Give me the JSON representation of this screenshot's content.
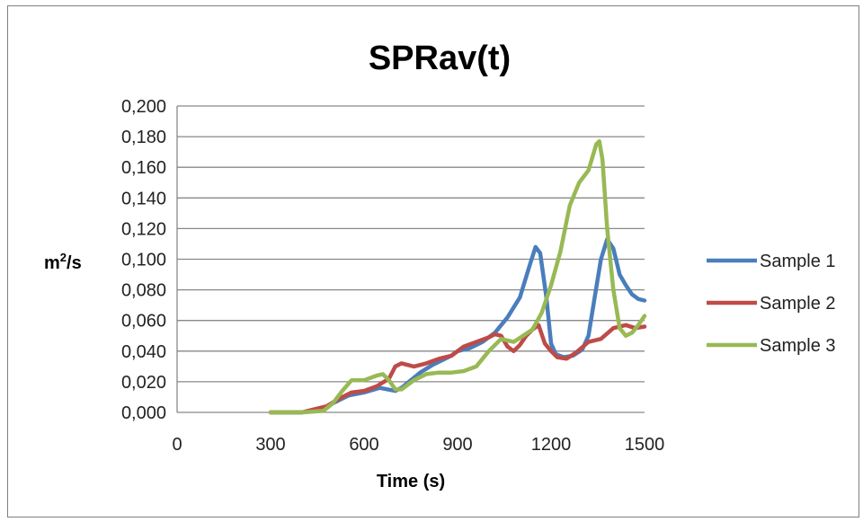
{
  "chart_data": {
    "type": "line",
    "title": "SPRav(t)",
    "xlabel": "Time (s)",
    "ylabel_base": "m",
    "ylabel_sup": "2",
    "ylabel_rest": "/s",
    "xlim": [
      0,
      1500
    ],
    "ylim": [
      0,
      0.2
    ],
    "x_ticks": [
      0,
      300,
      600,
      900,
      1200,
      1500
    ],
    "x_tick_labels": [
      "0",
      "300",
      "600",
      "900",
      "1200",
      "1500"
    ],
    "y_ticks": [
      0,
      0.02,
      0.04,
      0.06,
      0.08,
      0.1,
      0.12,
      0.14,
      0.16,
      0.18,
      0.2
    ],
    "y_tick_labels": [
      "0,000",
      "0,020",
      "0,040",
      "0,060",
      "0,080",
      "0,100",
      "0,120",
      "0,140",
      "0,160",
      "0,180",
      "0,200"
    ],
    "grid": "horizontal",
    "legend_position": "right",
    "series": [
      {
        "name": "Sample 1",
        "color": "#4a7ebb",
        "points": [
          [
            300,
            0
          ],
          [
            400,
            0
          ],
          [
            460,
            0.001
          ],
          [
            500,
            0.006
          ],
          [
            550,
            0.011
          ],
          [
            600,
            0.013
          ],
          [
            650,
            0.016
          ],
          [
            700,
            0.014
          ],
          [
            720,
            0.016
          ],
          [
            780,
            0.026
          ],
          [
            820,
            0.031
          ],
          [
            850,
            0.034
          ],
          [
            880,
            0.037
          ],
          [
            900,
            0.04
          ],
          [
            940,
            0.042
          ],
          [
            980,
            0.046
          ],
          [
            1020,
            0.052
          ],
          [
            1060,
            0.062
          ],
          [
            1100,
            0.075
          ],
          [
            1130,
            0.095
          ],
          [
            1150,
            0.108
          ],
          [
            1165,
            0.104
          ],
          [
            1185,
            0.075
          ],
          [
            1200,
            0.045
          ],
          [
            1215,
            0.038
          ],
          [
            1240,
            0.036
          ],
          [
            1270,
            0.037
          ],
          [
            1300,
            0.041
          ],
          [
            1320,
            0.05
          ],
          [
            1340,
            0.075
          ],
          [
            1360,
            0.1
          ],
          [
            1380,
            0.113
          ],
          [
            1400,
            0.107
          ],
          [
            1420,
            0.09
          ],
          [
            1440,
            0.083
          ],
          [
            1460,
            0.077
          ],
          [
            1480,
            0.074
          ],
          [
            1500,
            0.073
          ]
        ]
      },
      {
        "name": "Sample 2",
        "color": "#be4b48",
        "points": [
          [
            300,
            0
          ],
          [
            400,
            0
          ],
          [
            440,
            0.002
          ],
          [
            480,
            0.004
          ],
          [
            520,
            0.009
          ],
          [
            560,
            0.013
          ],
          [
            600,
            0.014
          ],
          [
            640,
            0.017
          ],
          [
            680,
            0.022
          ],
          [
            700,
            0.03
          ],
          [
            720,
            0.032
          ],
          [
            760,
            0.03
          ],
          [
            800,
            0.032
          ],
          [
            840,
            0.035
          ],
          [
            880,
            0.037
          ],
          [
            920,
            0.043
          ],
          [
            960,
            0.046
          ],
          [
            1000,
            0.049
          ],
          [
            1020,
            0.051
          ],
          [
            1040,
            0.05
          ],
          [
            1060,
            0.043
          ],
          [
            1080,
            0.04
          ],
          [
            1100,
            0.044
          ],
          [
            1120,
            0.05
          ],
          [
            1140,
            0.054
          ],
          [
            1160,
            0.057
          ],
          [
            1180,
            0.045
          ],
          [
            1200,
            0.04
          ],
          [
            1220,
            0.036
          ],
          [
            1250,
            0.035
          ],
          [
            1280,
            0.039
          ],
          [
            1320,
            0.046
          ],
          [
            1360,
            0.048
          ],
          [
            1400,
            0.055
          ],
          [
            1440,
            0.057
          ],
          [
            1470,
            0.055
          ],
          [
            1500,
            0.056
          ]
        ]
      },
      {
        "name": "Sample 3",
        "color": "#98b954",
        "points": [
          [
            300,
            0
          ],
          [
            400,
            0
          ],
          [
            470,
            0.001
          ],
          [
            500,
            0.006
          ],
          [
            530,
            0.014
          ],
          [
            560,
            0.021
          ],
          [
            600,
            0.021
          ],
          [
            640,
            0.024
          ],
          [
            660,
            0.025
          ],
          [
            680,
            0.021
          ],
          [
            700,
            0.015
          ],
          [
            720,
            0.015
          ],
          [
            760,
            0.021
          ],
          [
            800,
            0.025
          ],
          [
            840,
            0.026
          ],
          [
            880,
            0.026
          ],
          [
            920,
            0.027
          ],
          [
            960,
            0.03
          ],
          [
            1000,
            0.04
          ],
          [
            1040,
            0.048
          ],
          [
            1060,
            0.047
          ],
          [
            1080,
            0.046
          ],
          [
            1110,
            0.05
          ],
          [
            1140,
            0.054
          ],
          [
            1170,
            0.065
          ],
          [
            1200,
            0.083
          ],
          [
            1230,
            0.105
          ],
          [
            1260,
            0.135
          ],
          [
            1290,
            0.15
          ],
          [
            1320,
            0.158
          ],
          [
            1345,
            0.175
          ],
          [
            1355,
            0.177
          ],
          [
            1365,
            0.165
          ],
          [
            1380,
            0.12
          ],
          [
            1400,
            0.08
          ],
          [
            1420,
            0.055
          ],
          [
            1440,
            0.05
          ],
          [
            1460,
            0.052
          ],
          [
            1480,
            0.057
          ],
          [
            1500,
            0.063
          ]
        ]
      }
    ]
  }
}
